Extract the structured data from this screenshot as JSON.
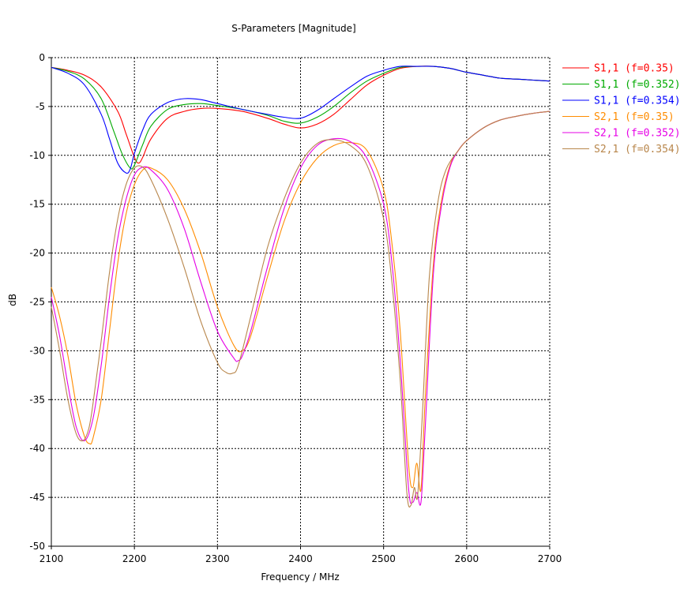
{
  "chart_data": {
    "type": "line",
    "title": "S-Parameters [Magnitude]",
    "xlabel": "Frequency / MHz",
    "ylabel": "dB",
    "xlim": [
      2100,
      2700
    ],
    "ylim": [
      -50,
      0
    ],
    "xticks": [
      2100,
      2200,
      2300,
      2400,
      2500,
      2600,
      2700
    ],
    "yticks": [
      0,
      -5,
      -10,
      -15,
      -20,
      -25,
      -30,
      -35,
      -40,
      -45,
      -50
    ],
    "grid": true,
    "legend_position": "top-right",
    "series": [
      {
        "name": "S1,1 (f=0.35)",
        "color": "#ff0000",
        "x": [
          2100,
          2120,
          2140,
          2160,
          2180,
          2190,
          2200,
          2205,
          2210,
          2220,
          2240,
          2260,
          2280,
          2300,
          2330,
          2360,
          2380,
          2400,
          2420,
          2440,
          2460,
          2480,
          2500,
          2520,
          2540,
          2560,
          2580,
          2600,
          2620,
          2640,
          2660,
          2680,
          2700
        ],
        "y": [
          -1,
          -1.3,
          -1.8,
          -3,
          -5.5,
          -7.8,
          -10.2,
          -10.8,
          -10.2,
          -8.3,
          -6.2,
          -5.5,
          -5.2,
          -5.2,
          -5.5,
          -6.2,
          -6.8,
          -7.2,
          -6.8,
          -5.8,
          -4.3,
          -2.8,
          -1.8,
          -1.1,
          -0.9,
          -0.9,
          -1.1,
          -1.5,
          -1.8,
          -2.1,
          -2.2,
          -2.3,
          -2.4
        ]
      },
      {
        "name": "S1,1 (f=0.352)",
        "color": "#00aa00",
        "x": [
          2100,
          2120,
          2140,
          2160,
          2175,
          2185,
          2195,
          2200,
          2210,
          2220,
          2240,
          2260,
          2280,
          2300,
          2330,
          2360,
          2380,
          2400,
          2420,
          2440,
          2460,
          2480,
          2500,
          2520,
          2540,
          2560,
          2580,
          2600,
          2620,
          2640,
          2660,
          2680,
          2700
        ],
        "y": [
          -1,
          -1.4,
          -2.2,
          -4.2,
          -7.5,
          -9.8,
          -11.3,
          -11.0,
          -8.9,
          -7.0,
          -5.3,
          -4.8,
          -4.7,
          -4.9,
          -5.3,
          -5.9,
          -6.5,
          -6.7,
          -6.1,
          -5,
          -3.6,
          -2.4,
          -1.6,
          -1,
          -0.9,
          -0.9,
          -1.1,
          -1.5,
          -1.8,
          -2.1,
          -2.2,
          -2.3,
          -2.4
        ]
      },
      {
        "name": "S1,1 (f=0.354)",
        "color": "#0000ff",
        "x": [
          2100,
          2120,
          2140,
          2160,
          2170,
          2180,
          2190,
          2195,
          2200,
          2210,
          2220,
          2240,
          2260,
          2280,
          2300,
          2330,
          2360,
          2380,
          2400,
          2420,
          2440,
          2460,
          2480,
          2500,
          2520,
          2540,
          2560,
          2580,
          2600,
          2620,
          2640,
          2660,
          2680,
          2700
        ],
        "y": [
          -1,
          -1.6,
          -2.8,
          -5.8,
          -8.3,
          -10.8,
          -11.8,
          -11.4,
          -9.8,
          -7.4,
          -5.8,
          -4.6,
          -4.2,
          -4.3,
          -4.7,
          -5.3,
          -5.8,
          -6.1,
          -6.2,
          -5.4,
          -4.2,
          -3,
          -1.9,
          -1.3,
          -0.9,
          -0.9,
          -0.9,
          -1.1,
          -1.5,
          -1.8,
          -2.1,
          -2.2,
          -2.3,
          -2.4
        ]
      },
      {
        "name": "S2,1 (f=0.35)",
        "color": "#ff8c00",
        "x": [
          2100,
          2110,
          2120,
          2130,
          2140,
          2146,
          2150,
          2160,
          2170,
          2180,
          2190,
          2200,
          2210,
          2220,
          2240,
          2260,
          2280,
          2300,
          2320,
          2330,
          2340,
          2360,
          2380,
          2400,
          2420,
          2440,
          2460,
          2480,
          2500,
          2510,
          2520,
          2530,
          2535,
          2540,
          2545,
          2550,
          2560,
          2570,
          2580,
          2590,
          2600,
          2620,
          2640,
          2660,
          2680,
          2700
        ],
        "y": [
          -23.5,
          -26.5,
          -30.5,
          -35.5,
          -38.8,
          -39.5,
          -39,
          -35,
          -28,
          -21,
          -16,
          -13,
          -11.5,
          -11.3,
          -12.5,
          -15.5,
          -20,
          -25.5,
          -29.5,
          -30,
          -28.5,
          -22.5,
          -16.8,
          -12.8,
          -10.3,
          -9,
          -8.7,
          -9.5,
          -13.5,
          -19,
          -28,
          -41.5,
          -44,
          -41.5,
          -44.2,
          -35,
          -21,
          -14.5,
          -11,
          -9.5,
          -8.5,
          -7.2,
          -6.4,
          -6,
          -5.7,
          -5.5
        ]
      },
      {
        "name": "S2,1 (f=0.352)",
        "color": "#e600e6",
        "x": [
          2100,
          2110,
          2120,
          2130,
          2140,
          2150,
          2160,
          2170,
          2180,
          2190,
          2200,
          2210,
          2220,
          2240,
          2260,
          2280,
          2300,
          2320,
          2325,
          2330,
          2340,
          2360,
          2380,
          2400,
          2420,
          2440,
          2460,
          2480,
          2500,
          2510,
          2520,
          2530,
          2535,
          2540,
          2545,
          2550,
          2560,
          2570,
          2580,
          2590,
          2600,
          2620,
          2640,
          2660,
          2680,
          2700
        ],
        "y": [
          -24.5,
          -28.5,
          -33.5,
          -37.8,
          -39.2,
          -37,
          -31.5,
          -24.5,
          -18.5,
          -14.5,
          -12,
          -11.2,
          -11.5,
          -13.5,
          -17.5,
          -23,
          -28,
          -30.8,
          -31,
          -30.5,
          -28,
          -21.5,
          -15.5,
          -11.3,
          -9,
          -8.3,
          -8.6,
          -10.3,
          -15,
          -21,
          -31,
          -44,
          -45.5,
          -44.5,
          -45.5,
          -38,
          -22,
          -15,
          -11.2,
          -9.5,
          -8.5,
          -7.2,
          -6.4,
          -6,
          -5.7,
          -5.5
        ]
      },
      {
        "name": "S2,1 (f=0.354)",
        "color": "#b8864b",
        "x": [
          2100,
          2110,
          2120,
          2130,
          2138,
          2145,
          2150,
          2160,
          2170,
          2180,
          2190,
          2200,
          2210,
          2220,
          2240,
          2260,
          2280,
          2300,
          2310,
          2318,
          2325,
          2340,
          2360,
          2380,
          2400,
          2420,
          2440,
          2460,
          2480,
          2500,
          2510,
          2520,
          2528,
          2533,
          2537,
          2541,
          2547,
          2555,
          2565,
          2575,
          2590,
          2600,
          2620,
          2640,
          2660,
          2680,
          2700
        ],
        "y": [
          -25.5,
          -30,
          -35,
          -38.5,
          -39.2,
          -38,
          -35.5,
          -29,
          -22,
          -16.5,
          -13,
          -11.3,
          -11.2,
          -12.5,
          -16.5,
          -21.5,
          -27,
          -31.2,
          -32.2,
          -32.3,
          -31.5,
          -26.5,
          -19.5,
          -14.5,
          -10.8,
          -8.8,
          -8.4,
          -9,
          -11,
          -16.5,
          -23,
          -33,
          -44.5,
          -45.8,
          -44,
          -44.8,
          -36,
          -22.5,
          -15,
          -11.5,
          -9.5,
          -8.5,
          -7.2,
          -6.4,
          -6,
          -5.7,
          -5.5
        ]
      }
    ]
  }
}
